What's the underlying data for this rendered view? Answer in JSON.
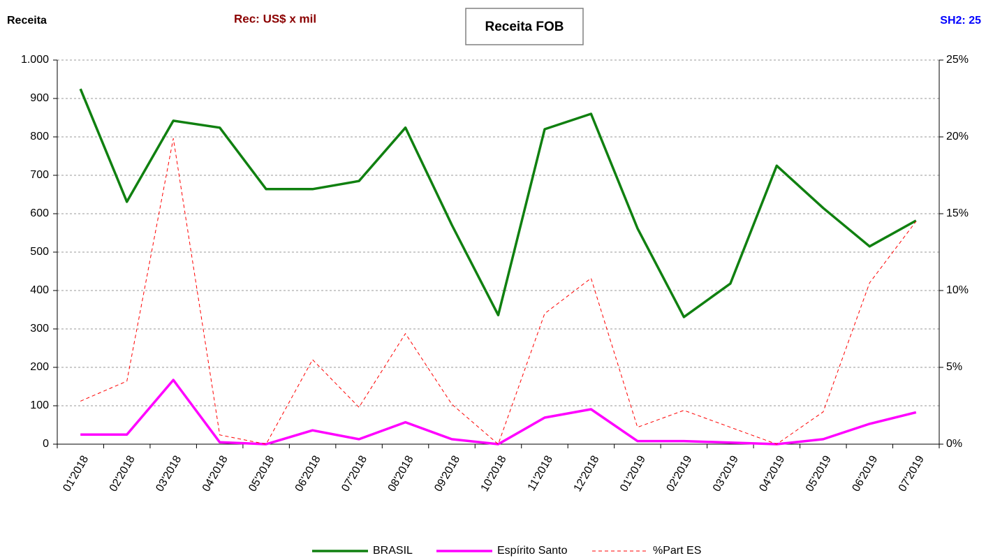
{
  "chart_data": {
    "type": "line",
    "title": "Receita FOB",
    "y_label": "Receita",
    "unit_note": "Rec: US$ x mil",
    "code_note": "SH2: 25",
    "categories": [
      "01'2018",
      "02'2018",
      "03'2018",
      "04'2018",
      "05'2018",
      "06'2018",
      "07'2018",
      "08'2018",
      "09'2018",
      "10'2018",
      "11'2018",
      "12'2018",
      "01'2019",
      "02'2019",
      "03'2019",
      "04'2019",
      "05'2019",
      "06'2019",
      "07'2019"
    ],
    "series": [
      {
        "name": "BRASIL",
        "color": "#108010",
        "line_style": "solid",
        "axis": "y",
        "values": [
          925,
          631,
          842,
          824,
          664,
          664,
          685,
          824,
          571,
          336,
          820,
          860,
          562,
          331,
          418,
          725,
          615,
          515,
          582
        ]
      },
      {
        "name": "Espírito Santo",
        "color": "#ff00ff",
        "line_style": "solid",
        "axis": "y",
        "values": [
          25,
          25,
          167,
          5,
          0,
          36,
          13,
          57,
          13,
          0,
          69,
          91,
          8,
          8,
          4,
          0,
          13,
          53,
          83
        ]
      },
      {
        "name": "%Part ES",
        "color": "#ff0000",
        "line_style": "dashed",
        "axis": "y2",
        "values": [
          2.8,
          4.1,
          19.9,
          0.6,
          0,
          5.5,
          2.4,
          7.2,
          2.6,
          0,
          8.5,
          10.8,
          1.1,
          2.2,
          1.1,
          0,
          2.1,
          10.5,
          14.5
        ]
      }
    ],
    "ylim": [
      0,
      1000
    ],
    "yticks": [
      0,
      100,
      200,
      300,
      400,
      500,
      600,
      700,
      800,
      900,
      {
        "value": 1000,
        "label": "1.000"
      }
    ],
    "y2lim": [
      0,
      25
    ],
    "y2ticks": [
      {
        "value": 0,
        "label": "0%"
      },
      {
        "value": 5,
        "label": "5%"
      },
      {
        "value": 10,
        "label": "10%"
      },
      {
        "value": 15,
        "label": "15%"
      },
      {
        "value": 20,
        "label": "20%"
      },
      {
        "value": 25,
        "label": "25%"
      }
    ],
    "grid": true,
    "legend": "bottom"
  }
}
